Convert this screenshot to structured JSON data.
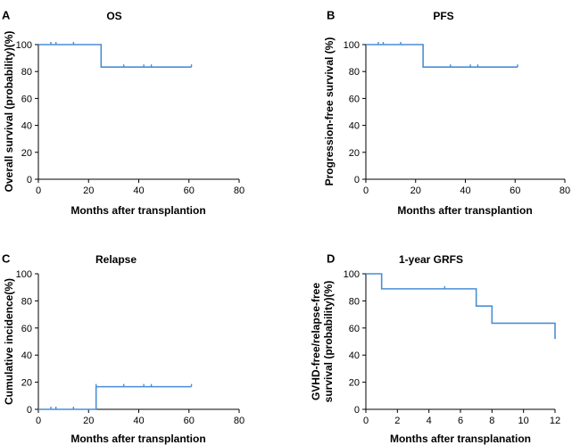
{
  "chart_data": [
    {
      "panel": "A",
      "type": "line",
      "step": true,
      "title": "OS",
      "xlabel": "Months after transplantion",
      "ylabel": "Overall survival (probability)(%)",
      "xlim": [
        0,
        80
      ],
      "ylim": [
        0,
        100
      ],
      "xticks": [
        0,
        20,
        40,
        60,
        80
      ],
      "yticks": [
        0,
        20,
        40,
        60,
        80,
        100
      ],
      "series": [
        {
          "name": "OS",
          "x": [
            0,
            25,
            61
          ],
          "y": [
            100,
            83.3,
            83.3
          ]
        }
      ],
      "censored": {
        "x": [
          5,
          7,
          14,
          34,
          42,
          45,
          61
        ],
        "y": [
          100,
          100,
          100,
          83.3,
          83.3,
          83.3,
          83.3
        ]
      },
      "color": "#4a8ed6"
    },
    {
      "panel": "B",
      "type": "line",
      "step": true,
      "title": "PFS",
      "xlabel": "Months after transplantion",
      "ylabel": "Progression-free survival (%)",
      "xlim": [
        0,
        80
      ],
      "ylim": [
        0,
        100
      ],
      "xticks": [
        0,
        20,
        40,
        60,
        80
      ],
      "yticks": [
        0,
        20,
        40,
        60,
        80,
        100
      ],
      "series": [
        {
          "name": "PFS",
          "x": [
            0,
            23,
            61
          ],
          "y": [
            100,
            83.3,
            83.3
          ]
        }
      ],
      "censored": {
        "x": [
          5,
          7,
          14,
          34,
          42,
          45,
          61
        ],
        "y": [
          100,
          100,
          100,
          83.3,
          83.3,
          83.3,
          83.3
        ]
      },
      "color": "#4a8ed6"
    },
    {
      "panel": "C",
      "type": "line",
      "step": true,
      "title": "Relapse",
      "xlabel": "Months after transplantion",
      "ylabel": "Cumulative incidence(%)",
      "xlim": [
        0,
        80
      ],
      "ylim": [
        0,
        100
      ],
      "xticks": [
        0,
        20,
        40,
        60,
        80
      ],
      "yticks": [
        0,
        20,
        40,
        60,
        80,
        100
      ],
      "series": [
        {
          "name": "Relapse",
          "x": [
            0,
            23,
            61
          ],
          "y": [
            0,
            16.7,
            16.7
          ]
        }
      ],
      "censored": {
        "x": [
          5,
          7,
          14,
          23,
          34,
          42,
          45,
          61
        ],
        "y": [
          0,
          0,
          0,
          16.7,
          16.7,
          16.7,
          16.7,
          16.7
        ]
      },
      "color": "#4a8ed6"
    },
    {
      "panel": "D",
      "type": "line",
      "step": true,
      "title": "1-year GRFS",
      "xlabel": "Months after transplanation",
      "ylabel": [
        "GVHD-free/relapse-free",
        "survival (probability)(%)"
      ],
      "xlim": [
        0,
        12
      ],
      "ylim": [
        0,
        100
      ],
      "xticks": [
        0,
        2,
        4,
        6,
        8,
        10,
        12
      ],
      "yticks": [
        0,
        20,
        40,
        60,
        80,
        100
      ],
      "series": [
        {
          "name": "GRFS",
          "x": [
            0,
            1,
            7,
            8,
            12
          ],
          "y": [
            100,
            88.9,
            76.2,
            63.5,
            52
          ]
        }
      ],
      "censored": {
        "x": [
          5
        ],
        "y": [
          88.9
        ]
      },
      "color": "#4a8ed6"
    }
  ]
}
